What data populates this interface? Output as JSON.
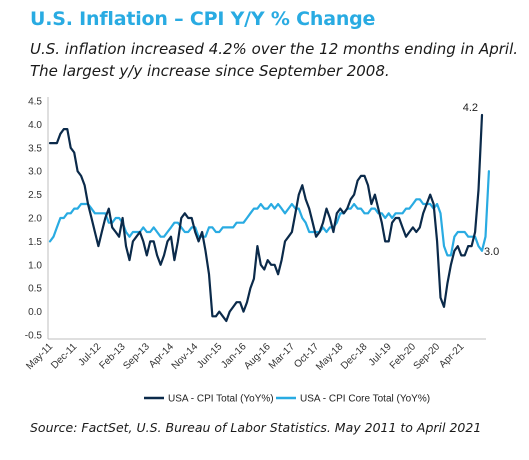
{
  "header": {
    "title": "U.S. Inflation – CPI Y/Y % Change",
    "subtitle": "U.S. inflation increased 4.2% over the 12 months ending in April. The largest y/y increase since September 2008."
  },
  "footer": {
    "source": "Source: FactSet, U.S. Bureau of Labor Statistics. May 2011 to April 2021"
  },
  "chart_data": {
    "type": "line",
    "title": "",
    "xlabel": "",
    "ylabel": "",
    "ylim": [
      -0.5,
      4.5
    ],
    "yticks": [
      "4.5",
      "4.0",
      "3.5",
      "3.0",
      "2.5",
      "2.0",
      "1.5",
      "1.0",
      "0.5",
      "0.0",
      "-0.5"
    ],
    "xticks": [
      "May-11",
      "Dec-11",
      "Jul-12",
      "Feb-13",
      "Sep-13",
      "Apr-14",
      "Nov-14",
      "Jun-15",
      "Jan-16",
      "Aug-16",
      "Mar-17",
      "Oct-17",
      "May-18",
      "Dec-18",
      "Jul-19",
      "Feb-20",
      "Sep-20",
      "Apr-21"
    ],
    "grid": false,
    "legend_position": "bottom",
    "annotations": [
      {
        "text": "4.2",
        "series": "USA - CPI Total (YoY%)"
      },
      {
        "text": "3.0",
        "series": "USA - CPI Core Total (YoY%)"
      }
    ],
    "series": [
      {
        "name": "USA - CPI Total (YoY%)",
        "color": "#0B2A4A",
        "values": [
          3.6,
          3.6,
          3.6,
          3.8,
          3.9,
          3.9,
          3.5,
          3.4,
          3.0,
          2.9,
          2.7,
          2.3,
          2.0,
          1.7,
          1.4,
          1.7,
          2.0,
          2.2,
          1.8,
          1.7,
          1.6,
          2.0,
          1.4,
          1.1,
          1.5,
          1.6,
          1.7,
          1.5,
          1.2,
          1.5,
          1.5,
          1.2,
          1.0,
          1.2,
          1.5,
          1.6,
          1.1,
          1.5,
          2.0,
          2.1,
          2.0,
          2.0,
          1.7,
          1.5,
          1.7,
          1.3,
          0.8,
          -0.1,
          -0.1,
          0.0,
          -0.1,
          -0.2,
          0.0,
          0.1,
          0.2,
          0.2,
          0.0,
          0.2,
          0.5,
          0.7,
          1.4,
          1.0,
          0.9,
          1.1,
          1.0,
          1.0,
          0.8,
          1.1,
          1.5,
          1.6,
          1.7,
          2.1,
          2.5,
          2.7,
          2.4,
          2.2,
          1.9,
          1.6,
          1.7,
          1.9,
          2.2,
          2.0,
          1.7,
          2.1,
          2.2,
          2.1,
          2.2,
          2.4,
          2.5,
          2.8,
          2.9,
          2.9,
          2.7,
          2.3,
          2.5,
          2.2,
          1.9,
          1.5,
          1.5,
          1.9,
          2.0,
          2.0,
          1.8,
          1.6,
          1.7,
          1.8,
          1.7,
          1.8,
          2.1,
          2.3,
          2.5,
          2.3,
          1.5,
          0.3,
          0.1,
          0.6,
          1.0,
          1.3,
          1.4,
          1.2,
          1.2,
          1.4,
          1.4,
          1.7,
          2.6,
          4.2
        ]
      },
      {
        "name": "USA - CPI Core Total (YoY%)",
        "color": "#29ABE2",
        "values": [
          1.5,
          1.6,
          1.8,
          2.0,
          2.0,
          2.1,
          2.1,
          2.2,
          2.2,
          2.3,
          2.3,
          2.3,
          2.2,
          2.1,
          2.1,
          2.1,
          2.1,
          1.9,
          1.9,
          2.0,
          2.0,
          1.9,
          1.7,
          1.6,
          1.7,
          1.7,
          1.7,
          1.8,
          1.7,
          1.7,
          1.8,
          1.7,
          1.6,
          1.6,
          1.7,
          1.8,
          1.9,
          1.9,
          1.8,
          1.7,
          1.7,
          1.8,
          1.8,
          1.6,
          1.6,
          1.6,
          1.8,
          1.8,
          1.7,
          1.7,
          1.8,
          1.8,
          1.8,
          1.8,
          1.9,
          1.9,
          1.9,
          2.0,
          2.1,
          2.2,
          2.2,
          2.3,
          2.2,
          2.2,
          2.3,
          2.2,
          2.3,
          2.2,
          2.1,
          2.2,
          2.3,
          2.2,
          2.2,
          2.0,
          1.9,
          1.7,
          1.7,
          1.7,
          1.7,
          1.8,
          1.7,
          1.8,
          1.8,
          1.9,
          2.1,
          2.1,
          2.2,
          2.2,
          2.3,
          2.2,
          2.2,
          2.1,
          2.1,
          2.2,
          2.2,
          2.1,
          2.1,
          2.0,
          2.1,
          2.0,
          2.1,
          2.1,
          2.1,
          2.2,
          2.2,
          2.3,
          2.4,
          2.4,
          2.3,
          2.3,
          2.3,
          2.2,
          2.3,
          2.1,
          1.4,
          1.2,
          1.2,
          1.6,
          1.7,
          1.7,
          1.7,
          1.6,
          1.6,
          1.6,
          1.4,
          1.3,
          1.6,
          3.0
        ]
      }
    ]
  }
}
